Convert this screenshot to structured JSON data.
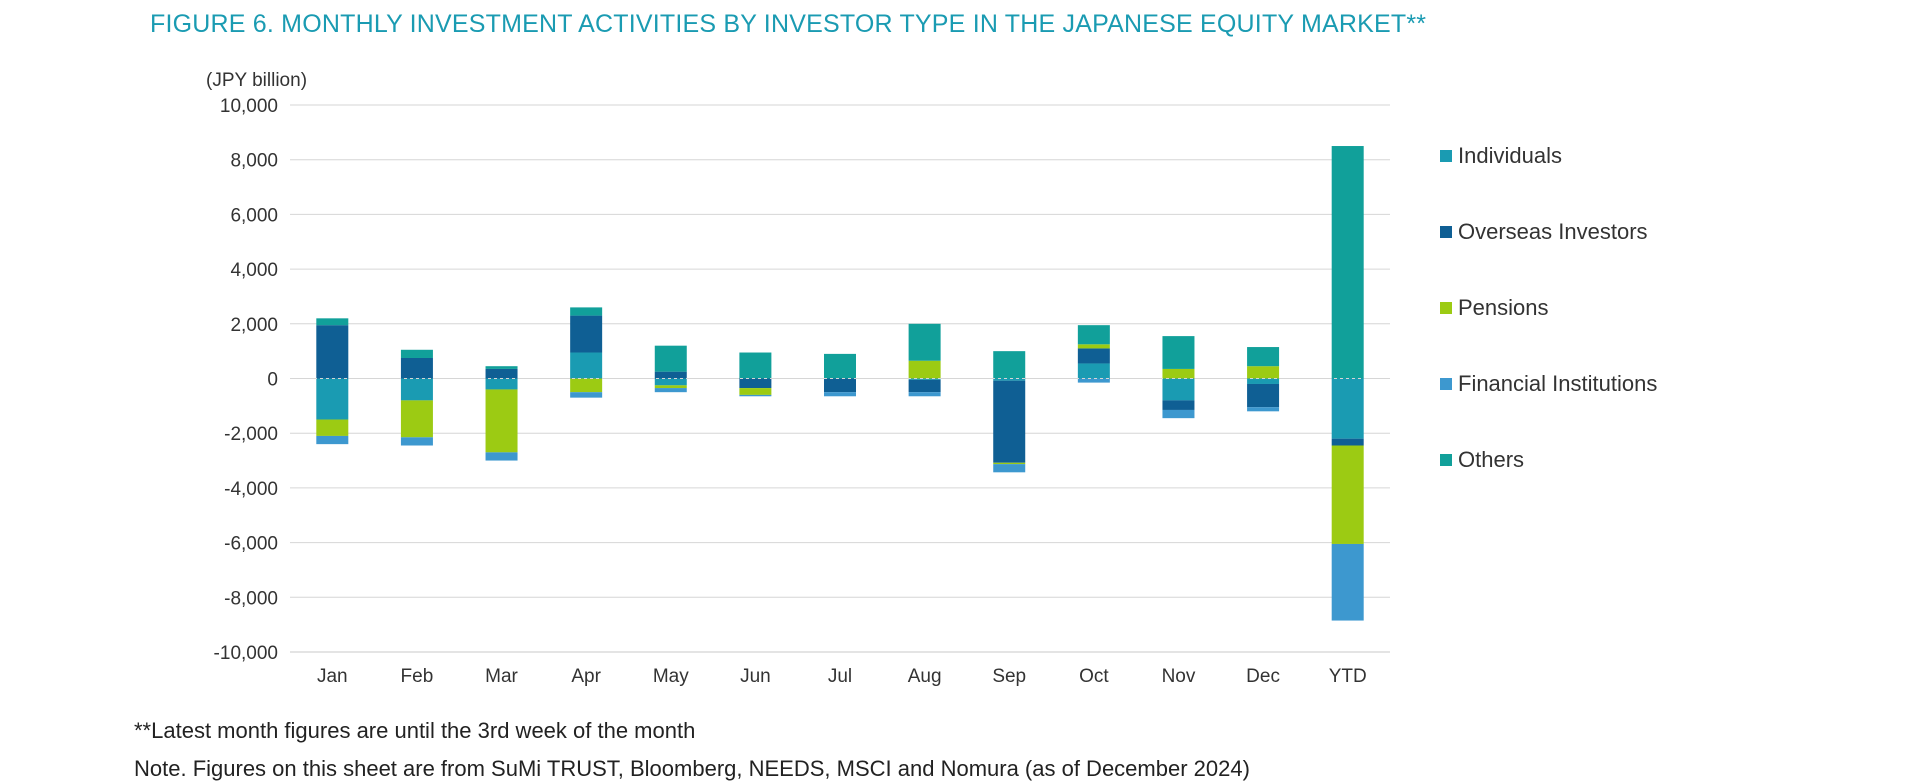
{
  "chart_data": {
    "type": "bar",
    "stacked": true,
    "title": "FIGURE 6. MONTHLY INVESTMENT ACTIVITIES BY INVESTOR TYPE IN THE JAPANESE EQUITY MARKET**",
    "unit_label": "(JPY billion)",
    "xlabel": "",
    "ylabel": "",
    "ylim": [
      -10000,
      10000
    ],
    "yticks": [
      10000,
      8000,
      6000,
      4000,
      2000,
      0,
      -2000,
      -4000,
      -6000,
      -8000,
      -10000
    ],
    "ytick_labels": [
      "10,000",
      "8,000",
      "6,000",
      "4,000",
      "2,000",
      "0",
      "-2,000",
      "-4,000",
      "-6,000",
      "-8,000",
      "-10,000"
    ],
    "grid": true,
    "legend_position": "right",
    "categories": [
      "Jan",
      "Feb",
      "Mar",
      "Apr",
      "May",
      "Jun",
      "Jul",
      "Aug",
      "Sep",
      "Oct",
      "Nov",
      "Dec",
      "YTD"
    ],
    "series": [
      {
        "name": "Individuals",
        "color": "#1a9bb2",
        "values": [
          -1500,
          -800,
          -400,
          950,
          -250,
          0,
          0,
          -50,
          -80,
          550,
          -800,
          -200,
          -2200
        ]
      },
      {
        "name": "Overseas Investors",
        "color": "#0f5f94",
        "values": [
          1950,
          750,
          350,
          1350,
          250,
          -350,
          -500,
          -450,
          -3000,
          550,
          -350,
          -850,
          -250
        ]
      },
      {
        "name": "Pensions",
        "color": "#9ccb13",
        "values": [
          -600,
          -1350,
          -2300,
          -500,
          -100,
          -250,
          0,
          650,
          -50,
          150,
          350,
          450,
          -3600
        ]
      },
      {
        "name": "Financial Institutions",
        "color": "#3d98cf",
        "values": [
          -300,
          -300,
          -300,
          -200,
          -150,
          -50,
          -150,
          -150,
          -300,
          -150,
          -300,
          -150,
          -2800
        ]
      },
      {
        "name": "Others",
        "color": "#11a09a",
        "values": [
          250,
          300,
          100,
          300,
          950,
          950,
          900,
          1350,
          1000,
          700,
          1200,
          700,
          8500
        ]
      }
    ]
  },
  "notes": {
    "line1": "**Latest month figures are until the 3rd week of the month",
    "line2": "Note. Figures on this sheet are from SuMi TRUST, Bloomberg, NEEDS, MSCI and Nomura (as of December 2024)"
  }
}
